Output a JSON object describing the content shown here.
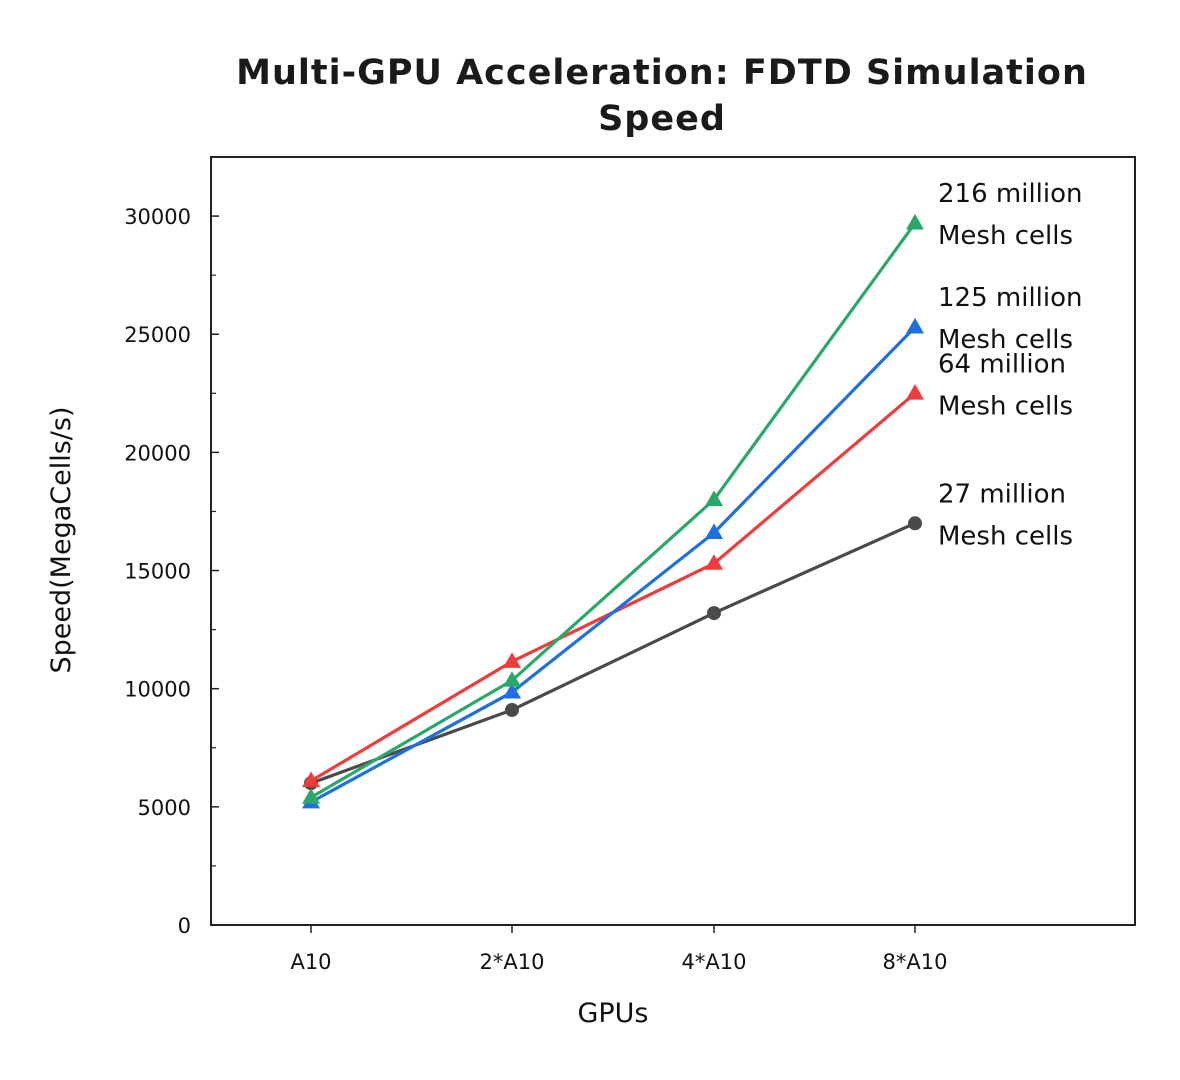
{
  "chart_data": {
    "type": "line",
    "title_lines": [
      "Multi-GPU Acceleration: FDTD Simulation",
      "Speed"
    ],
    "xlabel": "GPUs",
    "ylabel": "Speed(MegaCells/s)",
    "categories": [
      "A10",
      "2*A10",
      "4*A10",
      "8*A10"
    ],
    "ylim": [
      0,
      32500
    ],
    "yticks": [
      0,
      5000,
      10000,
      15000,
      20000,
      25000,
      30000
    ],
    "yticks_minor": [
      2500,
      7500,
      12500,
      17500,
      22500,
      27500
    ],
    "grid": false,
    "series": [
      {
        "name": "27 million Mesh cells",
        "label_lines": [
          "27 million",
          "Mesh cells"
        ],
        "color": "#4a4a4a",
        "marker": "circle",
        "values": [
          6000,
          9100,
          13200,
          17000
        ]
      },
      {
        "name": "64 million Mesh cells",
        "label_lines": [
          "64 million",
          "Mesh cells"
        ],
        "color": "#f03c3c",
        "marker": "triangle",
        "values": [
          6100,
          11150,
          15300,
          22500
        ]
      },
      {
        "name": "125 million Mesh cells",
        "label_lines": [
          "125 million",
          "Mesh cells"
        ],
        "color": "#1f6fe0",
        "marker": "triangle",
        "values": [
          5200,
          9850,
          16600,
          25300
        ]
      },
      {
        "name": "216 million Mesh cells",
        "label_lines": [
          "216 million",
          "Mesh cells"
        ],
        "color": "#2aa86a",
        "marker": "triangle",
        "values": [
          5400,
          10350,
          18000,
          29700
        ]
      }
    ]
  }
}
